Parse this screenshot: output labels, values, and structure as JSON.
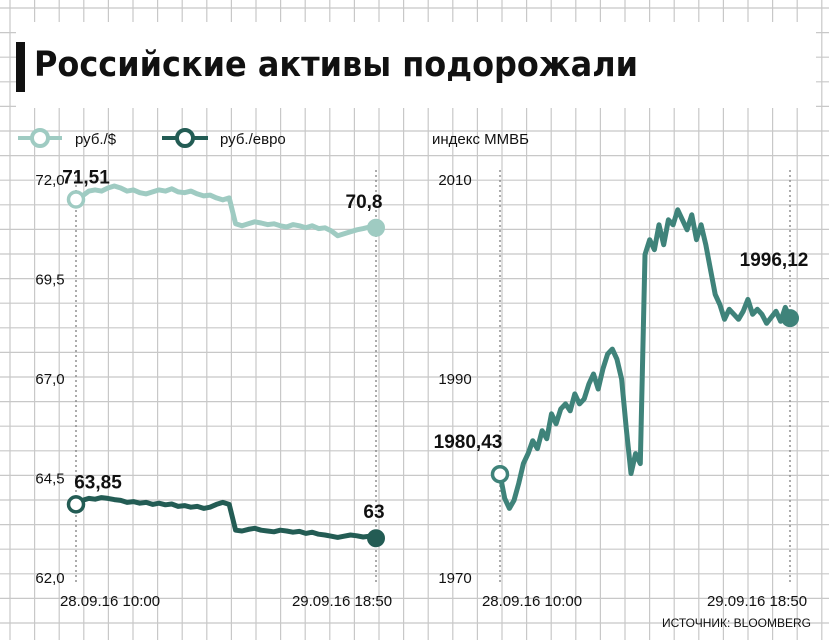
{
  "title": "Российские активы подорожали",
  "source": "ИСТОЧНИК: BLOOMBERG",
  "colors": {
    "grid": "#c8c8c8",
    "usd": "#9fcbc2",
    "eur": "#235c54",
    "index": "#3f837a",
    "text": "#111111",
    "bar": "#111111"
  },
  "chart_data": [
    {
      "type": "line",
      "legend_position": "top-left",
      "grid": true,
      "ylim": [
        62.0,
        72.0
      ],
      "yticks": [
        "72,0",
        "69,5",
        "67,0",
        "64,5",
        "62,0"
      ],
      "x_ticks": [
        "28.09.16 10:00",
        "29.09.16 18:50"
      ],
      "series": [
        {
          "name": "руб./$",
          "start_label": "71,51",
          "end_label": "70,8",
          "values": [
            71.51,
            71.6,
            71.72,
            71.75,
            71.72,
            71.8,
            71.85,
            71.8,
            71.72,
            71.75,
            71.68,
            71.65,
            71.7,
            71.75,
            71.72,
            71.78,
            71.7,
            71.68,
            71.72,
            71.65,
            71.6,
            71.62,
            71.55,
            71.5,
            71.55,
            70.9,
            70.85,
            70.9,
            70.95,
            70.92,
            70.88,
            70.9,
            70.85,
            70.82,
            70.88,
            70.85,
            70.8,
            70.85,
            70.78,
            70.8,
            70.72,
            70.6,
            70.65,
            70.7,
            70.75,
            70.78,
            70.82,
            70.8
          ]
        },
        {
          "name": "руб./евро",
          "start_label": "63,85",
          "end_label": "63",
          "values": [
            63.85,
            63.95,
            64.0,
            63.98,
            64.02,
            64.0,
            63.97,
            63.95,
            63.9,
            63.92,
            63.88,
            63.9,
            63.85,
            63.88,
            63.84,
            63.86,
            63.8,
            63.82,
            63.78,
            63.8,
            63.75,
            63.78,
            63.85,
            63.9,
            63.85,
            63.2,
            63.18,
            63.22,
            63.25,
            63.2,
            63.18,
            63.16,
            63.2,
            63.18,
            63.15,
            63.17,
            63.12,
            63.15,
            63.1,
            63.08,
            63.05,
            63.02,
            63.05,
            63.08,
            63.06,
            63.03,
            63.05,
            63.0
          ]
        }
      ]
    },
    {
      "type": "line",
      "grid": true,
      "ylabel": "индекс ММВБ",
      "ylim": [
        1970,
        2010
      ],
      "yticks": [
        "2010",
        "1990",
        "1970"
      ],
      "x_ticks": [
        "28.09.16 10:00",
        "29.09.16 18:50"
      ],
      "series": [
        {
          "name": "",
          "start_label": "1980,43",
          "end_label": "1996,12",
          "values": [
            1980.43,
            1978.0,
            1977.0,
            1977.8,
            1979.5,
            1981.5,
            1982.5,
            1983.8,
            1983.0,
            1984.8,
            1984.0,
            1986.5,
            1985.5,
            1987.0,
            1987.5,
            1986.8,
            1988.5,
            1987.5,
            1988.0,
            1989.5,
            1990.5,
            1989.0,
            1991.0,
            1992.5,
            1993.0,
            1992.0,
            1990.0,
            1985.0,
            1980.5,
            1982.5,
            1981.5,
            2002.5,
            2004.0,
            2003.0,
            2005.5,
            2003.5,
            2006.0,
            2005.5,
            2007.0,
            2006.0,
            2005.0,
            2006.5,
            2004.0,
            2005.5,
            2003.5,
            2001.0,
            1998.5,
            1997.5,
            1996.0,
            1997.0,
            1996.5,
            1996.0,
            1996.8,
            1998.0,
            1996.5,
            1997.0,
            1996.5,
            1995.6,
            1996.2,
            1996.8,
            1995.8,
            1997.2,
            1996.12
          ]
        }
      ]
    }
  ]
}
